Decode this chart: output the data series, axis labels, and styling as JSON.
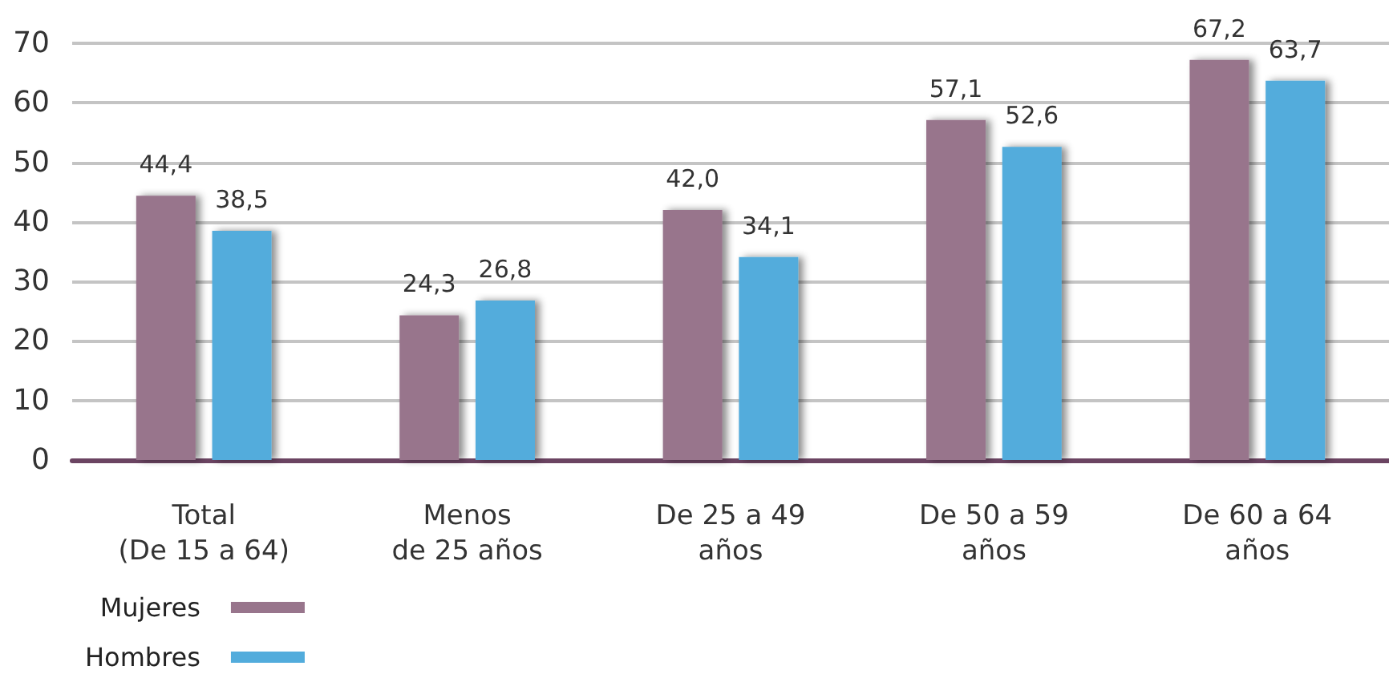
{
  "chart_data": {
    "type": "bar",
    "categories": [
      "Total\n(De 15 a 64)",
      "Menos\nde 25 años",
      "De 25 a 49\naños",
      "De 50 a 59\naños",
      "De 60 a 64\naños"
    ],
    "series": [
      {
        "name": "Mujeres",
        "color": "#98758c",
        "values": [
          44.4,
          24.3,
          42.0,
          57.1,
          67.2
        ],
        "value_labels": [
          "44,4",
          "24,3",
          "42,0",
          "57,1",
          "67,2"
        ]
      },
      {
        "name": "Hombres",
        "color": "#52acdc",
        "values": [
          38.5,
          26.8,
          34.1,
          52.6,
          63.7
        ],
        "value_labels": [
          "38,5",
          "26,8",
          "34,1",
          "52,6",
          "63,7"
        ]
      }
    ],
    "ylim": [
      0,
      70
    ],
    "yticks": [
      0,
      10,
      20,
      30,
      40,
      50,
      60,
      70
    ],
    "grid": "y",
    "legend": "bottom left"
  }
}
